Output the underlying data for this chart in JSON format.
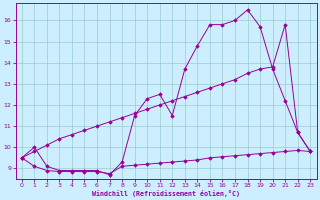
{
  "xlabel": "Windchill (Refroidissement éolien,°C)",
  "bg_color": "#cceeff",
  "line_color": "#990099",
  "grid_color": "#99cccc",
  "xlim": [
    -0.5,
    23.5
  ],
  "ylim": [
    8.5,
    16.8
  ],
  "yticks": [
    9,
    10,
    11,
    12,
    13,
    14,
    15,
    16
  ],
  "xticks": [
    0,
    1,
    2,
    3,
    4,
    5,
    6,
    7,
    8,
    9,
    10,
    11,
    12,
    13,
    14,
    15,
    16,
    17,
    18,
    19,
    20,
    21,
    22,
    23
  ],
  "line1_x": [
    0,
    1,
    2,
    3,
    4,
    5,
    6,
    7,
    8,
    9,
    10,
    11,
    12,
    13,
    14,
    15,
    16,
    17,
    18,
    19,
    20,
    21,
    22,
    23
  ],
  "line1_y": [
    9.5,
    10.0,
    9.1,
    8.9,
    8.9,
    8.9,
    8.9,
    8.7,
    9.3,
    11.5,
    12.3,
    12.5,
    11.5,
    13.7,
    14.8,
    15.8,
    15.8,
    16.0,
    16.5,
    15.7,
    13.7,
    12.2,
    10.7,
    9.8
  ],
  "line2_x": [
    0,
    1,
    2,
    3,
    4,
    5,
    6,
    7,
    8,
    9,
    10,
    11,
    12,
    13,
    14,
    15,
    16,
    17,
    18,
    19,
    20,
    21,
    22,
    23
  ],
  "line2_y": [
    9.5,
    9.8,
    10.1,
    10.4,
    10.6,
    10.8,
    11.0,
    11.2,
    11.4,
    11.6,
    11.8,
    12.0,
    12.2,
    12.4,
    12.6,
    12.8,
    13.0,
    13.2,
    13.5,
    13.7,
    13.8,
    15.8,
    10.7,
    9.8
  ],
  "line3_x": [
    0,
    1,
    2,
    3,
    4,
    5,
    6,
    7,
    8,
    9,
    10,
    11,
    12,
    13,
    14,
    15,
    16,
    17,
    18,
    19,
    20,
    21,
    22,
    23
  ],
  "line3_y": [
    9.5,
    9.1,
    8.9,
    8.85,
    8.85,
    8.85,
    8.85,
    8.75,
    9.1,
    9.15,
    9.2,
    9.25,
    9.3,
    9.35,
    9.4,
    9.5,
    9.55,
    9.6,
    9.65,
    9.7,
    9.75,
    9.8,
    9.85,
    9.8
  ]
}
